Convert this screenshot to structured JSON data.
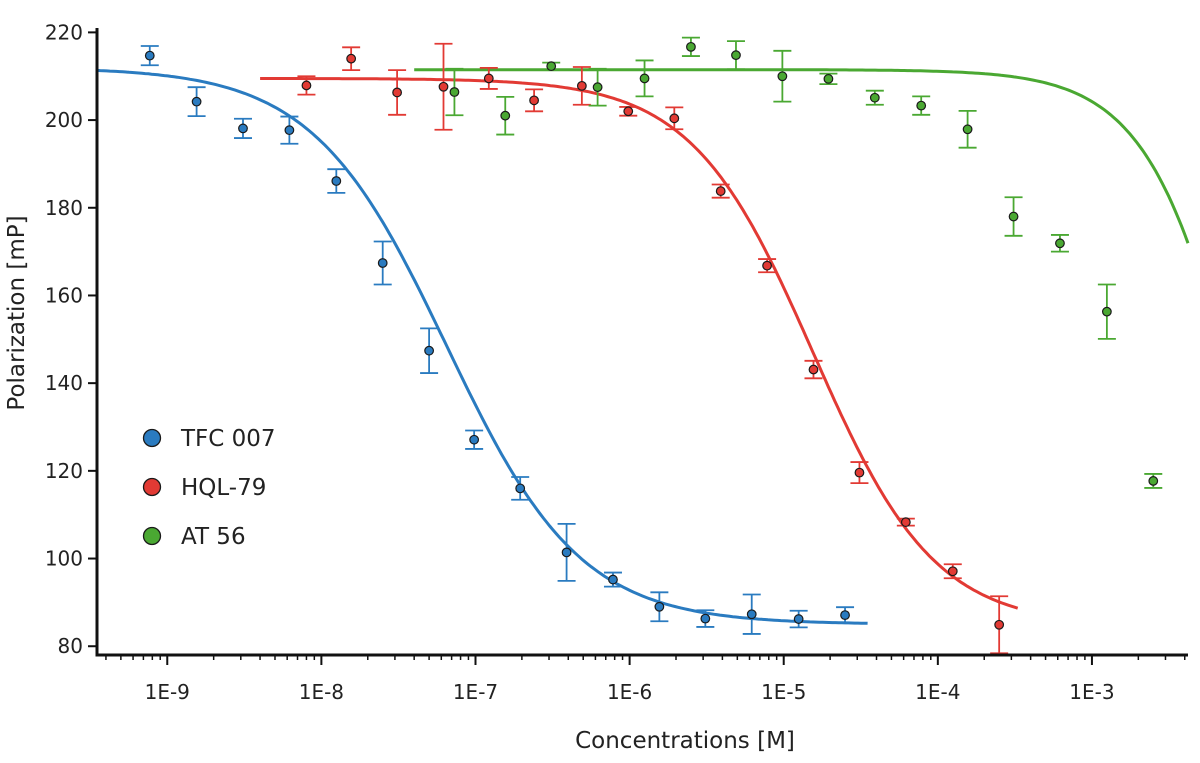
{
  "chart_data": {
    "type": "scatter",
    "title": "",
    "xlabel": "Concentrations [M]",
    "ylabel": "Polarization [mP]",
    "x_scale": "log",
    "xlim": [
      3.5e-10,
      0.0042
    ],
    "ylim": [
      78,
      221
    ],
    "x_ticks": [
      1e-09,
      1e-08,
      1e-07,
      1e-06,
      1e-05,
      0.0001,
      0.001
    ],
    "x_tick_labels": [
      "1E-9",
      "1E-8",
      "1E-7",
      "1E-6",
      "1E-5",
      "1E-4",
      "1E-3"
    ],
    "y_ticks": [
      80,
      100,
      120,
      140,
      160,
      180,
      200,
      220
    ],
    "y_tick_labels": [
      "80",
      "100",
      "120",
      "140",
      "160",
      "180",
      "200",
      "220"
    ],
    "grid": false,
    "legend_position": "left",
    "series": [
      {
        "name": "TFC 007",
        "color": "#2a7bc0",
        "fit": {
          "top": 212,
          "bottom": 85,
          "ic50": 6.5e-08,
          "hill": 1.0,
          "x_range": [
            3.5e-10,
            3.5e-05
          ]
        },
        "points": [
          {
            "x": 7.7e-10,
            "y": 214.7,
            "err": 2.2
          },
          {
            "x": 1.55e-09,
            "y": 204.2,
            "err": 3.3
          },
          {
            "x": 3.1e-09,
            "y": 198.1,
            "err": 2.2
          },
          {
            "x": 6.2e-09,
            "y": 197.7,
            "err": 3.1
          },
          {
            "x": 1.25e-08,
            "y": 186.1,
            "err": 2.7
          },
          {
            "x": 2.5e-08,
            "y": 167.4,
            "err": 4.9
          },
          {
            "x": 5e-08,
            "y": 147.4,
            "err": 5.1
          },
          {
            "x": 9.8e-08,
            "y": 127.1,
            "err": 2.1
          },
          {
            "x": 1.95e-07,
            "y": 116.0,
            "err": 2.6
          },
          {
            "x": 3.9e-07,
            "y": 101.4,
            "err": 6.5
          },
          {
            "x": 7.8e-07,
            "y": 95.2,
            "err": 1.6
          },
          {
            "x": 1.56e-06,
            "y": 89.0,
            "err": 3.3
          },
          {
            "x": 3.1e-06,
            "y": 86.3,
            "err": 1.9
          },
          {
            "x": 6.2e-06,
            "y": 87.3,
            "err": 4.5
          },
          {
            "x": 1.25e-05,
            "y": 86.2,
            "err": 1.9
          },
          {
            "x": 2.5e-05,
            "y": 87.1,
            "err": 1.8
          }
        ]
      },
      {
        "name": "HQL-79",
        "color": "#e23a34",
        "fit": {
          "top": 209.5,
          "bottom": 84.5,
          "ic50": 1.55e-05,
          "hill": 1.1,
          "x_range": [
            4e-09,
            0.00033
          ]
        },
        "points": [
          {
            "x": 8e-09,
            "y": 207.9,
            "err": 2.1
          },
          {
            "x": 1.56e-08,
            "y": 214.0,
            "err": 2.6
          },
          {
            "x": 3.1e-08,
            "y": 206.3,
            "err": 5.1
          },
          {
            "x": 6.2e-08,
            "y": 207.6,
            "err": 9.8
          },
          {
            "x": 1.22e-07,
            "y": 209.5,
            "err": 2.4
          },
          {
            "x": 2.4e-07,
            "y": 204.5,
            "err": 2.5
          },
          {
            "x": 4.9e-07,
            "y": 207.8,
            "err": 4.3
          },
          {
            "x": 9.8e-07,
            "y": 202.0,
            "err": 1.0
          },
          {
            "x": 1.95e-06,
            "y": 200.4,
            "err": 2.5
          },
          {
            "x": 3.9e-06,
            "y": 183.8,
            "err": 1.5
          },
          {
            "x": 7.8e-06,
            "y": 166.8,
            "err": 1.5
          },
          {
            "x": 1.56e-05,
            "y": 143.1,
            "err": 2.0
          },
          {
            "x": 3.1e-05,
            "y": 119.6,
            "err": 2.4
          },
          {
            "x": 6.2e-05,
            "y": 108.3,
            "err": 0.8
          },
          {
            "x": 0.000125,
            "y": 97.1,
            "err": 1.6
          },
          {
            "x": 0.00025,
            "y": 84.9,
            "err": 6.5
          }
        ]
      },
      {
        "name": "AT 56",
        "color": "#4aa832",
        "fit": {
          "top": 211.5,
          "bottom": 0,
          "ic50": 0.013,
          "hill": 1.3,
          "x_range": [
            4e-08,
            0.0042
          ]
        },
        "points": [
          {
            "x": 7.3e-08,
            "y": 206.4,
            "err": 5.3
          },
          {
            "x": 1.56e-07,
            "y": 201.0,
            "err": 4.3
          },
          {
            "x": 3.1e-07,
            "y": 212.3,
            "err": 0.8
          },
          {
            "x": 6.2e-07,
            "y": 207.5,
            "err": 4.2
          },
          {
            "x": 1.25e-06,
            "y": 209.5,
            "err": 4.1
          },
          {
            "x": 2.5e-06,
            "y": 216.7,
            "err": 2.1
          },
          {
            "x": 4.9e-06,
            "y": 214.8,
            "err": 3.2
          },
          {
            "x": 9.8e-06,
            "y": 210.0,
            "err": 5.8
          },
          {
            "x": 1.95e-05,
            "y": 209.4,
            "err": 1.2
          },
          {
            "x": 3.9e-05,
            "y": 205.1,
            "err": 1.6
          },
          {
            "x": 7.8e-05,
            "y": 203.3,
            "err": 2.1
          },
          {
            "x": 0.000156,
            "y": 197.9,
            "err": 4.2
          },
          {
            "x": 0.00031,
            "y": 178.0,
            "err": 4.4
          },
          {
            "x": 0.00062,
            "y": 171.9,
            "err": 1.9
          },
          {
            "x": 0.00125,
            "y": 156.3,
            "err": 6.2
          },
          {
            "x": 0.0025,
            "y": 117.7,
            "err": 1.6
          }
        ]
      }
    ]
  }
}
